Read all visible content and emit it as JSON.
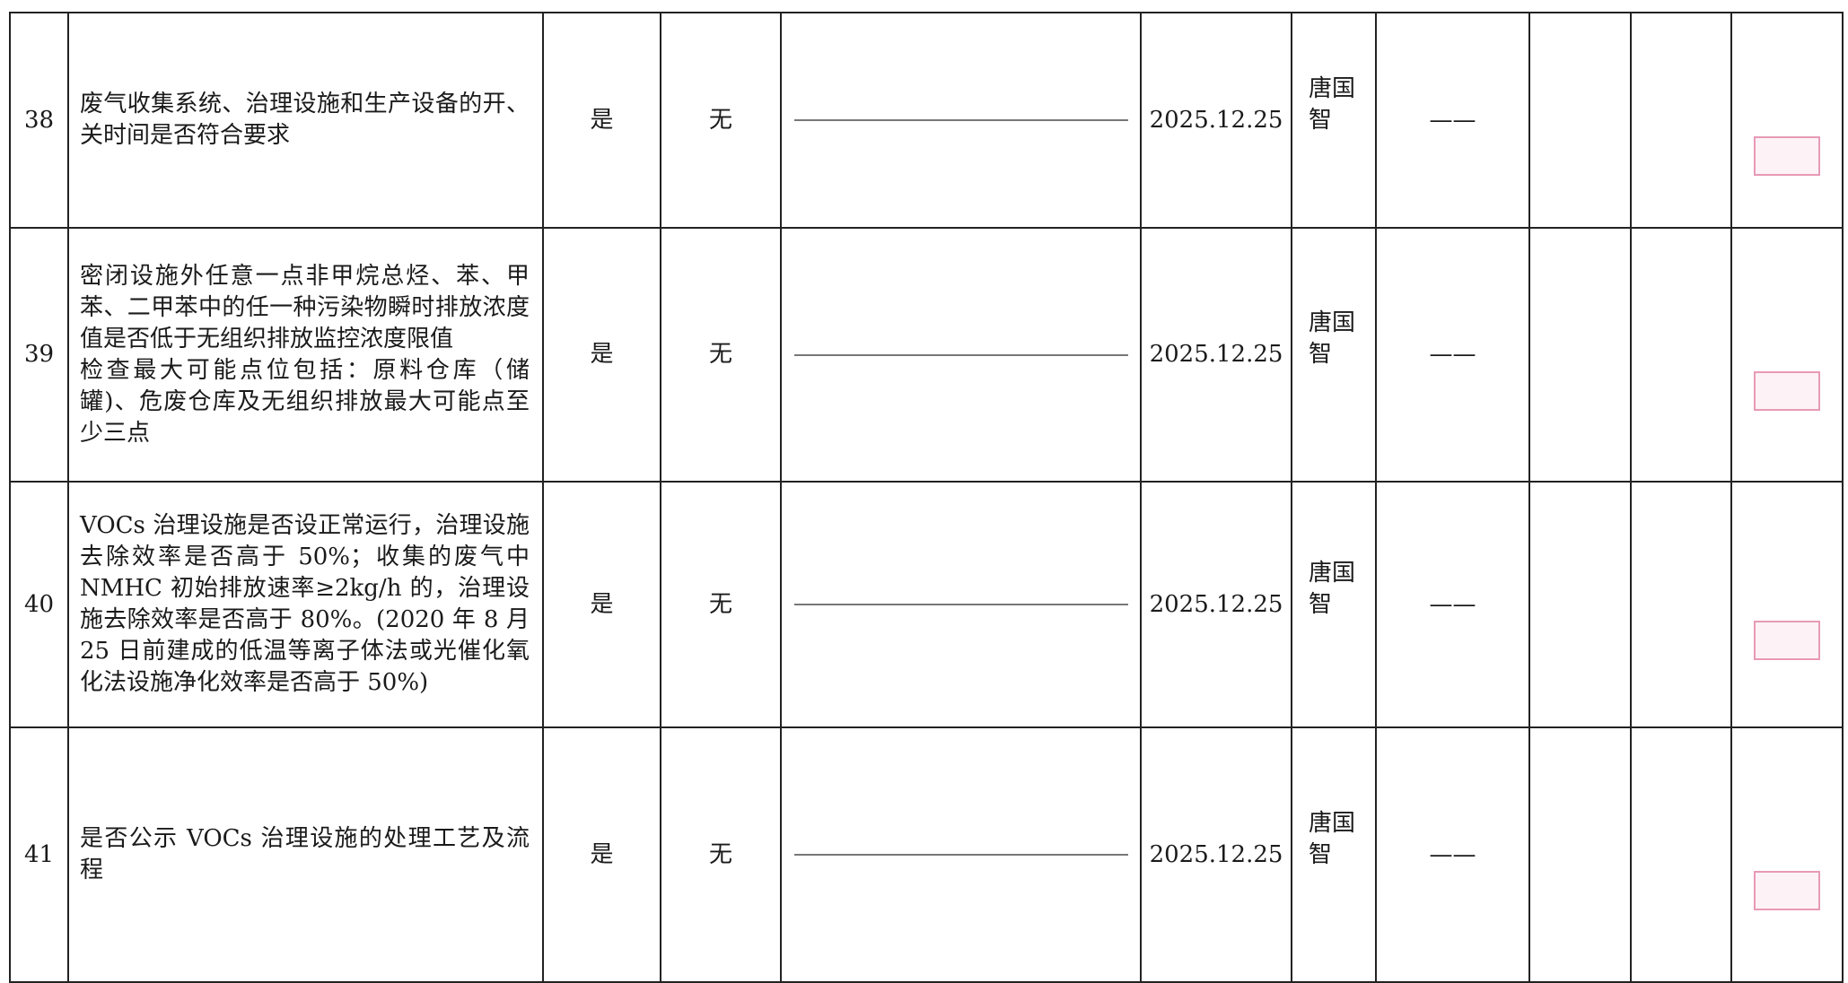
{
  "table": {
    "rows": [
      {
        "no": "38",
        "item": [
          "废气收集系统、治理设施和生产设备的开、关时间是否符合要求"
        ],
        "conform": "是",
        "issue": "无",
        "date": "2025.12.25",
        "inspector": "唐国智",
        "remark": "——"
      },
      {
        "no": "39",
        "item": [
          "密闭设施外任意一点非甲烷总烃、苯、甲苯、二甲苯中的任一种污染物瞬时排放浓度值是否低于无组织排放监控浓度限值",
          "检查最大可能点位包括：原料仓库（储罐)、危废仓库及无组织排放最大可能点至少三点"
        ],
        "conform": "是",
        "issue": "无",
        "date": "2025.12.25",
        "inspector": "唐国智",
        "remark": "——"
      },
      {
        "no": "40",
        "item": [
          "VOCs 治理设施是否设正常运行，治理设施去除效率是否高于 50%；收集的废气中 NMHC 初始排放速率≥2kg/h 的，治理设施去除效率是否高于 80%。(2020 年 8 月 25 日前建成的低温等离子体法或光催化氧化法设施净化效率是否高于 50%)"
        ],
        "conform": "是",
        "issue": "无",
        "date": "2025.12.25",
        "inspector": "唐国智",
        "remark": "——"
      },
      {
        "no": "41",
        "item": [
          "是否公示 VOCs 治理设施的处理工艺及流程"
        ],
        "conform": "是",
        "issue": "无",
        "date": "2025.12.25",
        "inspector": "唐国智",
        "remark": "——"
      }
    ]
  }
}
